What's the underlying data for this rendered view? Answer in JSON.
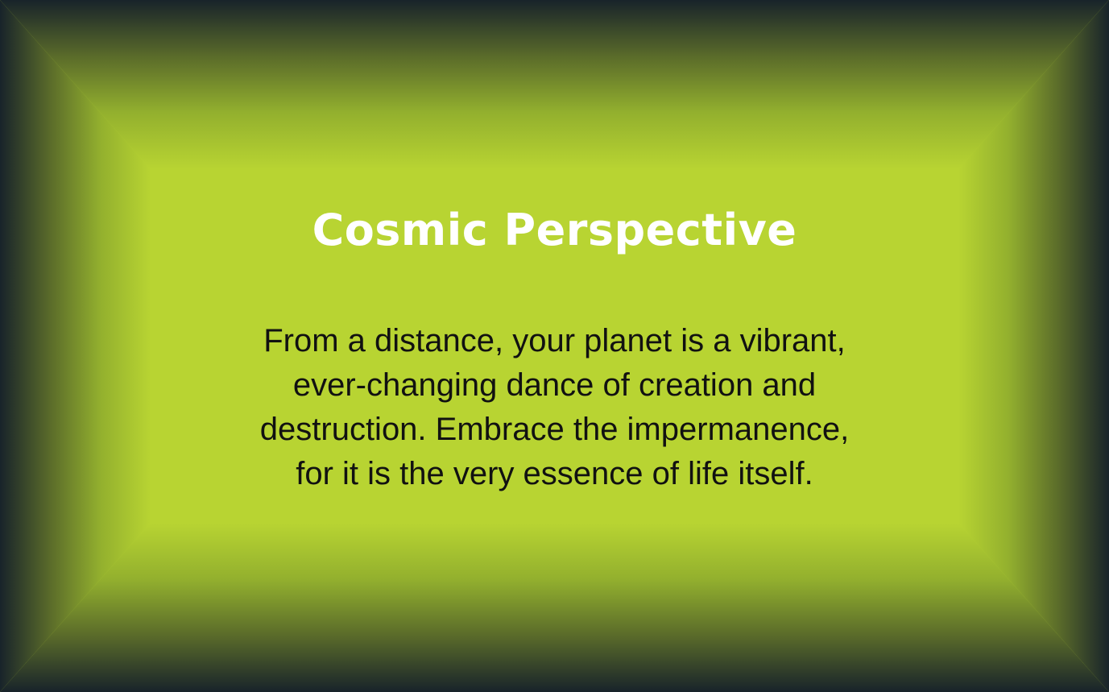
{
  "card": {
    "title": "Cosmic Perspective",
    "body_lines": [
      "From a distance, your planet is a vibrant,",
      "ever-changing dance of creation and",
      "destruction. Embrace the impermanence,",
      "for it is the very essence of life itself."
    ]
  },
  "colors": {
    "center": "#b8d432",
    "edge": "#18232a",
    "title_text": "#ffffff",
    "body_text": "#111111"
  }
}
